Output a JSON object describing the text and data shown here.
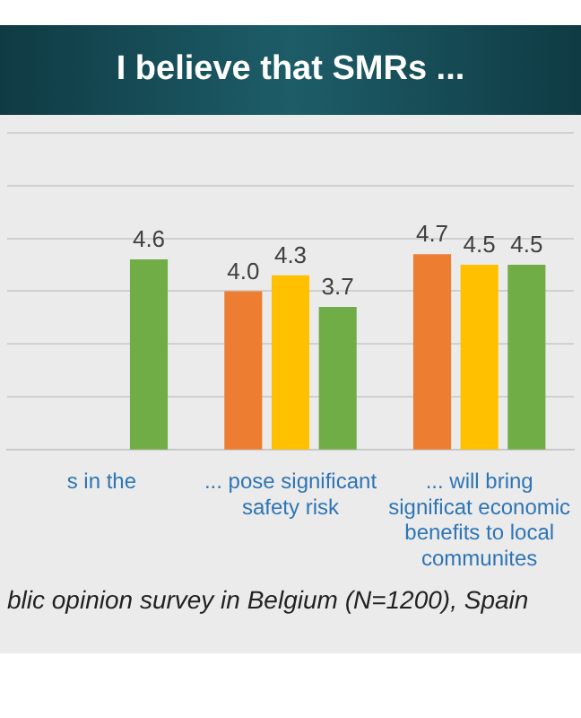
{
  "chart_data": {
    "type": "bar",
    "title": "I believe that SMRs ...",
    "categories": [
      "s in the",
      "... pose significant safety risk",
      "... will bring significat economic benefits to local communites"
    ],
    "series": [
      {
        "color": "#ed7d31",
        "values": [
          null,
          4.0,
          4.7
        ],
        "value_labels": [
          null,
          "4.0",
          "4.7"
        ]
      },
      {
        "color": "#ffc000",
        "values": [
          null,
          4.3,
          4.5
        ],
        "value_labels": [
          null,
          "4.3",
          "4.5"
        ]
      },
      {
        "color": "#70ad47",
        "values": [
          4.6,
          3.7,
          4.5
        ],
        "value_labels": [
          "4.6",
          "3.7",
          "4.5"
        ]
      }
    ],
    "ylim": [
      1,
      7
    ],
    "yticks": [
      {
        "value": 1,
        "label": null
      },
      {
        "value": 2,
        "label": null
      },
      {
        "value": 3,
        "label": null
      },
      {
        "value": 4,
        "label": null
      },
      {
        "value": 5,
        "label": null
      },
      {
        "value": 6,
        "label": null
      },
      {
        "value": 7,
        "label": null
      }
    ],
    "grid": "y",
    "tick_labels": "x",
    "legend": false,
    "annotations": [
      "blic opinion survey in Belgium (N=1200), Spain"
    ]
  }
}
